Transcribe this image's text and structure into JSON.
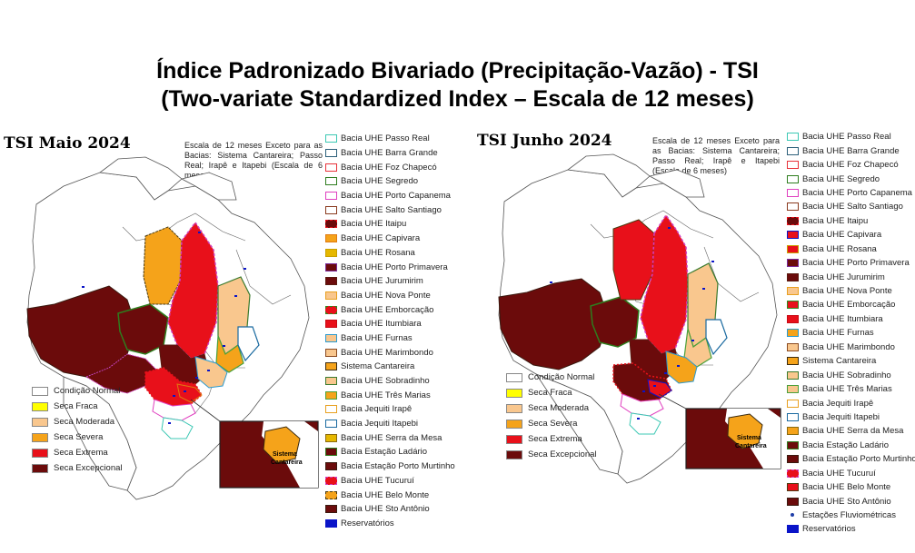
{
  "title": {
    "line1": "Índice Padronizado Bivariado (Precipitação-Vazão) - TSI",
    "line2": "(Two-variate Standardized Index – Escala de 12 meses)"
  },
  "colors": {
    "normal": "#ffffff",
    "fraca": "#ffff00",
    "moderada": "#f9c78e",
    "severa": "#f5a31a",
    "extrema": "#e8101a",
    "excepcional": "#6b0b0b",
    "reservoir": "#0a14c8",
    "ocean": "#ffffff",
    "neighbor": "#ffffff"
  },
  "class_legend": [
    {
      "label": "Condição Normal",
      "color": "#ffffff"
    },
    {
      "label": "Seca Fraca",
      "color": "#ffff00"
    },
    {
      "label": "Seca Moderada",
      "color": "#f9c78e"
    },
    {
      "label": "Seca Severa",
      "color": "#f5a31a"
    },
    {
      "label": "Seca Extrema",
      "color": "#e8101a"
    },
    {
      "label": "Seca Excepcional",
      "color": "#6b0b0b"
    }
  ],
  "panels": [
    {
      "title": "TSI Maio 2024",
      "note": "Escala de 12 meses Exceto para as Bacias: Sistema Cantareira; Passo Real; Irapê e Itapebi (Escala de 6 meses)",
      "inset_label_1": "Sistema",
      "inset_label_2": "Cantareira",
      "basins": [
        {
          "label": "Bacia UHE Passo Real",
          "border": "#3cc8b4",
          "fill": "#ffffff",
          "style": "solid"
        },
        {
          "label": "Bacia UHE Barra Grande",
          "border": "#2c5f7a",
          "fill": "#ffffff",
          "style": "solid"
        },
        {
          "label": "Bacia UHE Foz Chapecó",
          "border": "#e8323a",
          "fill": "#ffffff",
          "style": "solid"
        },
        {
          "label": "Bacia UHE Segredo",
          "border": "#2e7d1e",
          "fill": "#ffffff",
          "style": "solid"
        },
        {
          "label": "Bacia UHE Porto Capanema",
          "border": "#e040c0",
          "fill": "#ffffff",
          "style": "solid"
        },
        {
          "label": "Bacia UHE Salto Santiago",
          "border": "#8a3a1e",
          "fill": "#ffffff",
          "style": "solid"
        },
        {
          "label": "Bacia UHE Itaipu",
          "border": "#e8101a",
          "fill": "#6b0b0b",
          "style": "dashed"
        },
        {
          "label": "Bacia UHE Capivara",
          "border": "#e07a10",
          "fill": "#f5a31a",
          "style": "solid"
        },
        {
          "label": "Bacia UHE Rosana",
          "border": "#c8a000",
          "fill": "#e6b800",
          "style": "solid"
        },
        {
          "label": "Bacia UHE Porto Primavera",
          "border": "#7a2a9a",
          "fill": "#6b0b0b",
          "style": "solid"
        },
        {
          "label": "Bacia UHE Jurumirim",
          "border": "#5a1a10",
          "fill": "#6b0b0b",
          "style": "solid"
        },
        {
          "label": "Bacia UHE Nova Ponte",
          "border": "#e8a020",
          "fill": "#f9c78e",
          "style": "solid"
        },
        {
          "label": "Bacia UHE Emborcação",
          "border": "#2e8a1e",
          "fill": "#e8101a",
          "style": "dashed"
        },
        {
          "label": "Bacia UHE Itumbiara",
          "border": "#c80a14",
          "fill": "#e8101a",
          "style": "solid"
        },
        {
          "label": "Bacia UHE Furnas",
          "border": "#2a9ad0",
          "fill": "#f9c78e",
          "style": "solid"
        },
        {
          "label": "Bacia UHE Marimbondo",
          "border": "#8a4a20",
          "fill": "#f9c78e",
          "style": "solid"
        },
        {
          "label": "Sistema Cantareira",
          "border": "#3a2a10",
          "fill": "#f5a31a",
          "style": "solid"
        },
        {
          "label": "Bacia UHE Sobradinho",
          "border": "#3a7a2e",
          "fill": "#f9c78e",
          "style": "solid"
        },
        {
          "label": "Bacia UHE Três Marias",
          "border": "#4aa03a",
          "fill": "#f5a31a",
          "style": "solid"
        },
        {
          "label": "Bacia Jequiti Irapê",
          "border": "#e8a020",
          "fill": "#ffffff",
          "style": "solid"
        },
        {
          "label": "Bacia Jequiti Itapebi",
          "border": "#1a6aa0",
          "fill": "#ffffff",
          "style": "solid"
        },
        {
          "label": "Bacia UHE Serra da Mesa",
          "border": "#8a6a10",
          "fill": "#e6b800",
          "style": "solid"
        },
        {
          "label": "Bacia Estação Ladário",
          "border": "#2e7d1e",
          "fill": "#6b0b0b",
          "style": "solid"
        },
        {
          "label": "Bacia Estação Porto Murtinho",
          "border": "#3a1a10",
          "fill": "#6b0b0b",
          "style": "solid"
        },
        {
          "label": "Bacia UHE Tucuruí",
          "border": "#d040c0",
          "fill": "#e8101a",
          "style": "dashed"
        },
        {
          "label": "Bacia UHE Belo Monte",
          "border": "#4a3a10",
          "fill": "#f5a31a",
          "style": "dashed"
        },
        {
          "label": "Bacia UHE Sto Antônio",
          "border": "#3a1a10",
          "fill": "#6b0b0b",
          "style": "solid"
        },
        {
          "label": "Reservatórios",
          "border": "#0a14c8",
          "fill": "#0a14c8",
          "style": "solid"
        }
      ]
    },
    {
      "title": "TSI Junho 2024",
      "note": "Escala de 12 meses Exceto para as Bacias: Sistema Cantareira; Passo Real; Irapê e Itapebi (Escala de 6 meses)",
      "inset_label_1": "Sistema",
      "inset_label_2": "Cantareira",
      "basins": [
        {
          "label": "Bacia UHE Passo Real",
          "border": "#3cc8b4",
          "fill": "#ffffff",
          "style": "solid"
        },
        {
          "label": "Bacia UHE Barra Grande",
          "border": "#2c5f7a",
          "fill": "#ffffff",
          "style": "solid"
        },
        {
          "label": "Bacia UHE Foz Chapecó",
          "border": "#e8323a",
          "fill": "#ffffff",
          "style": "solid"
        },
        {
          "label": "Bacia UHE Segredo",
          "border": "#2e7d1e",
          "fill": "#ffffff",
          "style": "solid"
        },
        {
          "label": "Bacia UHE Porto Capanema",
          "border": "#e040c0",
          "fill": "#ffffff",
          "style": "solid"
        },
        {
          "label": "Bacia UHE Salto Santiago",
          "border": "#8a3a1e",
          "fill": "#ffffff",
          "style": "solid"
        },
        {
          "label": "Bacia UHE Itaipu",
          "border": "#e8101a",
          "fill": "#6b0b0b",
          "style": "dashed"
        },
        {
          "label": "Bacia UHE Capivara",
          "border": "#0a14c8",
          "fill": "#e8101a",
          "style": "solid"
        },
        {
          "label": "Bacia UHE Rosana",
          "border": "#c8a000",
          "fill": "#e8101a",
          "style": "solid"
        },
        {
          "label": "Bacia UHE Porto Primavera",
          "border": "#7a2a9a",
          "fill": "#6b0b0b",
          "style": "solid"
        },
        {
          "label": "Bacia UHE Jurumirim",
          "border": "#5a1a10",
          "fill": "#6b0b0b",
          "style": "solid"
        },
        {
          "label": "Bacia UHE Nova Ponte",
          "border": "#e8a020",
          "fill": "#f9c78e",
          "style": "solid"
        },
        {
          "label": "Bacia UHE Emborcação",
          "border": "#2e8a1e",
          "fill": "#e8101a",
          "style": "solid"
        },
        {
          "label": "Bacia UHE Itumbiara",
          "border": "#c80a14",
          "fill": "#e8101a",
          "style": "solid"
        },
        {
          "label": "Bacia UHE Furnas",
          "border": "#2a9ad0",
          "fill": "#f5a31a",
          "style": "solid"
        },
        {
          "label": "Bacia UHE Marimbondo",
          "border": "#8a4a20",
          "fill": "#f9c78e",
          "style": "solid"
        },
        {
          "label": "Sistema Cantareira",
          "border": "#3a2a10",
          "fill": "#f5a31a",
          "style": "solid"
        },
        {
          "label": "Bacia UHE Sobradinho",
          "border": "#3a7a2e",
          "fill": "#f9c78e",
          "style": "solid"
        },
        {
          "label": "Bacia UHE Três Marias",
          "border": "#4aa03a",
          "fill": "#f9c78e",
          "style": "solid"
        },
        {
          "label": "Bacia Jequiti Irapê",
          "border": "#e8a020",
          "fill": "#ffffff",
          "style": "solid"
        },
        {
          "label": "Bacia Jequiti Itapebi",
          "border": "#1a6aa0",
          "fill": "#ffffff",
          "style": "solid"
        },
        {
          "label": "Bacia UHE Serra da Mesa",
          "border": "#8a6a10",
          "fill": "#f5a31a",
          "style": "solid"
        },
        {
          "label": "Bacia Estação Ladário",
          "border": "#2e7d1e",
          "fill": "#6b0b0b",
          "style": "solid"
        },
        {
          "label": "Bacia Estação Porto Murtinho",
          "border": "#3a1a10",
          "fill": "#6b0b0b",
          "style": "solid"
        },
        {
          "label": "Bacia UHE Tucuruí",
          "border": "#d040c0",
          "fill": "#e8101a",
          "style": "dashed"
        },
        {
          "label": "Bacia UHE Belo Monte",
          "border": "#4a3a10",
          "fill": "#e8101a",
          "style": "solid"
        },
        {
          "label": "Bacia UHE Sto Antônio",
          "border": "#3a1a10",
          "fill": "#6b0b0b",
          "style": "solid"
        },
        {
          "label": "Estações Fluviométricas",
          "border": "#1f3ea8",
          "fill": "#1f3ea8",
          "style": "dot"
        },
        {
          "label": "Reservatórios",
          "border": "#0a14c8",
          "fill": "#0a14c8",
          "style": "solid"
        }
      ]
    }
  ]
}
